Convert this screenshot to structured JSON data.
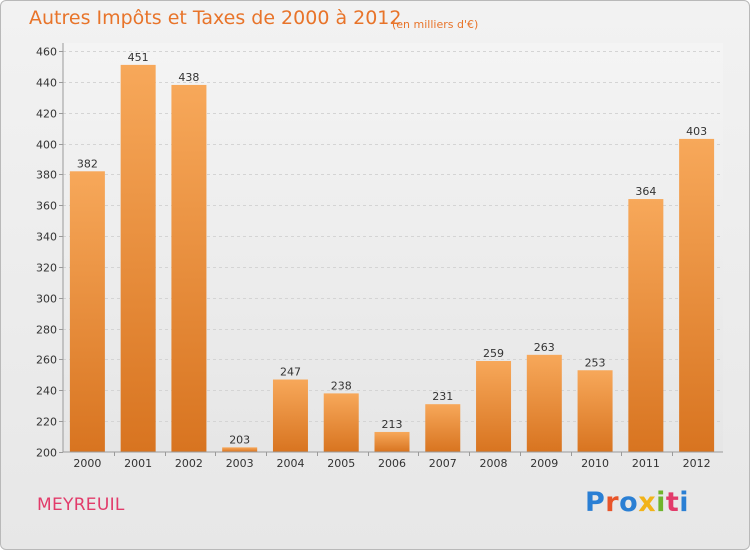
{
  "header": {
    "title": "Autres Impôts et Taxes de 2000 à 2012",
    "subtitle": "(en milliers d'€)"
  },
  "footer": {
    "city": "MEYREUIL",
    "logo": "Proxiti"
  },
  "colors": {
    "bar_top": "#f7a85a",
    "bar_bottom": "#d87420",
    "title": "#e8742a",
    "city": "#e23b6a"
  },
  "chart_data": {
    "type": "bar",
    "categories": [
      "2000",
      "2001",
      "2002",
      "2003",
      "2004",
      "2005",
      "2006",
      "2007",
      "2008",
      "2009",
      "2010",
      "2011",
      "2012"
    ],
    "values": [
      382,
      451,
      438,
      203,
      247,
      238,
      213,
      231,
      259,
      263,
      253,
      364,
      403
    ],
    "title": "Autres Impôts et Taxes de 2000 à 2012",
    "subtitle": "(en milliers d'€)",
    "xlabel": "",
    "ylabel": "",
    "ylim": [
      200,
      460
    ],
    "yticks": [
      200,
      220,
      240,
      260,
      280,
      300,
      320,
      340,
      360,
      380,
      400,
      420,
      440,
      460
    ],
    "grid": true,
    "legend": "none"
  }
}
